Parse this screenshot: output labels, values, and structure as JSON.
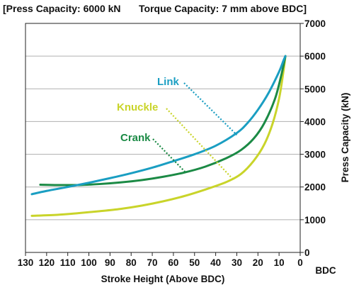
{
  "header": {
    "press_capacity": "[Press Capacity: 6000 kN",
    "torque_capacity": "Torque Capacity: 7 mm above BDC]"
  },
  "chart_data": {
    "type": "line",
    "xlabel": "Stroke Height (Above BDC)",
    "xunit_label": "BDC",
    "ylabel": "Press Capacity (kN)",
    "xlim": [
      130,
      0
    ],
    "ylim": [
      0,
      7000
    ],
    "x_ticks": [
      130,
      120,
      110,
      100,
      90,
      80,
      70,
      60,
      50,
      40,
      30,
      20,
      10,
      0
    ],
    "y_ticks": [
      0,
      1000,
      2000,
      3000,
      4000,
      5000,
      6000,
      7000
    ],
    "grid": "horizontal",
    "series": [
      {
        "name": "Link",
        "color": "#1a9ec2",
        "points": [
          [
            127,
            1780
          ],
          [
            120,
            1880
          ],
          [
            110,
            2000
          ],
          [
            100,
            2130
          ],
          [
            90,
            2270
          ],
          [
            80,
            2420
          ],
          [
            70,
            2590
          ],
          [
            60,
            2790
          ],
          [
            50,
            3000
          ],
          [
            40,
            3260
          ],
          [
            30,
            3650
          ],
          [
            25,
            3950
          ],
          [
            20,
            4360
          ],
          [
            15,
            4870
          ],
          [
            10,
            5520
          ],
          [
            8,
            5850
          ],
          [
            7,
            6000
          ]
        ]
      },
      {
        "name": "Crank",
        "color": "#1b8a45",
        "points": [
          [
            123,
            2070
          ],
          [
            115,
            2060
          ],
          [
            105,
            2060
          ],
          [
            95,
            2090
          ],
          [
            85,
            2140
          ],
          [
            75,
            2210
          ],
          [
            65,
            2310
          ],
          [
            55,
            2440
          ],
          [
            45,
            2620
          ],
          [
            35,
            2880
          ],
          [
            28,
            3130
          ],
          [
            22,
            3480
          ],
          [
            17,
            3950
          ],
          [
            12,
            4680
          ],
          [
            9,
            5400
          ],
          [
            7,
            6000
          ]
        ]
      },
      {
        "name": "Knuckle",
        "color": "#c9d42a",
        "points": [
          [
            127,
            1120
          ],
          [
            115,
            1150
          ],
          [
            105,
            1200
          ],
          [
            95,
            1260
          ],
          [
            85,
            1330
          ],
          [
            75,
            1430
          ],
          [
            65,
            1560
          ],
          [
            55,
            1720
          ],
          [
            45,
            1920
          ],
          [
            35,
            2150
          ],
          [
            28,
            2400
          ],
          [
            22,
            2800
          ],
          [
            17,
            3300
          ],
          [
            13,
            3950
          ],
          [
            10,
            4700
          ],
          [
            8,
            5500
          ],
          [
            7,
            6000
          ]
        ]
      }
    ],
    "annotations": [
      {
        "text": "Link",
        "series": "Link",
        "color": "#1a9ec2",
        "point": [
          30,
          3590
        ]
      },
      {
        "text": "Knuckle",
        "series": "Knuckle",
        "color": "#c9d42a",
        "point": [
          32,
          2250
        ]
      },
      {
        "text": "Crank",
        "series": "Crank",
        "color": "#1b8a45",
        "point": [
          54,
          2430
        ]
      }
    ]
  }
}
